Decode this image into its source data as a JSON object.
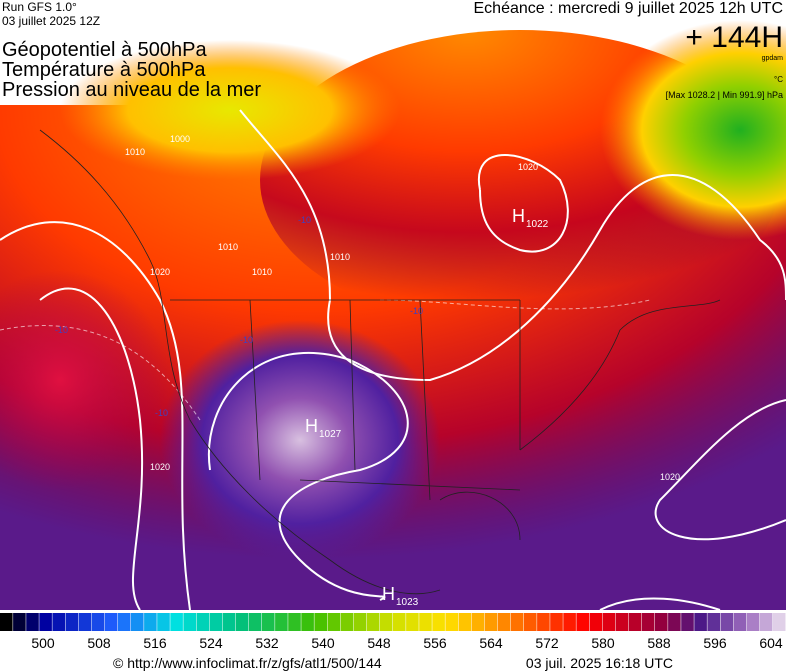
{
  "header": {
    "run": "Run GFS 1.0°",
    "run_date": "03 juillet 2025 12Z",
    "titles": [
      "Géopotentiel à 500hPa",
      "Température à 500hPa",
      "Pression au niveau de la mer"
    ],
    "echeance": "Echéance : mercredi 9 juillet 2025 12h UTC",
    "lead": "+ 144H",
    "unit": "gpdam",
    "temp_unit": "°C",
    "pressure_range": "[Max 1028.2 | Min 991.9] hPa"
  },
  "map": {
    "centers": [
      {
        "letter": "H",
        "value": 1022
      },
      {
        "letter": "H",
        "value": 1027
      },
      {
        "letter": "H",
        "value": 1023
      }
    ],
    "isobar_labels": [
      1000,
      1010,
      1010,
      1010,
      1010,
      1020,
      1020,
      1020,
      1020
    ],
    "temp_labels": [
      -10,
      -10,
      -10,
      -10,
      -10
    ]
  },
  "colorbar": {
    "labels": [
      500,
      508,
      516,
      524,
      532,
      540,
      548,
      556,
      564,
      572,
      580,
      588,
      596,
      604
    ]
  },
  "footer": {
    "url": "© http://www.infoclimat.fr/z/gfs/atl1/500/144",
    "date": "03 juil. 2025 16:18 UTC"
  }
}
